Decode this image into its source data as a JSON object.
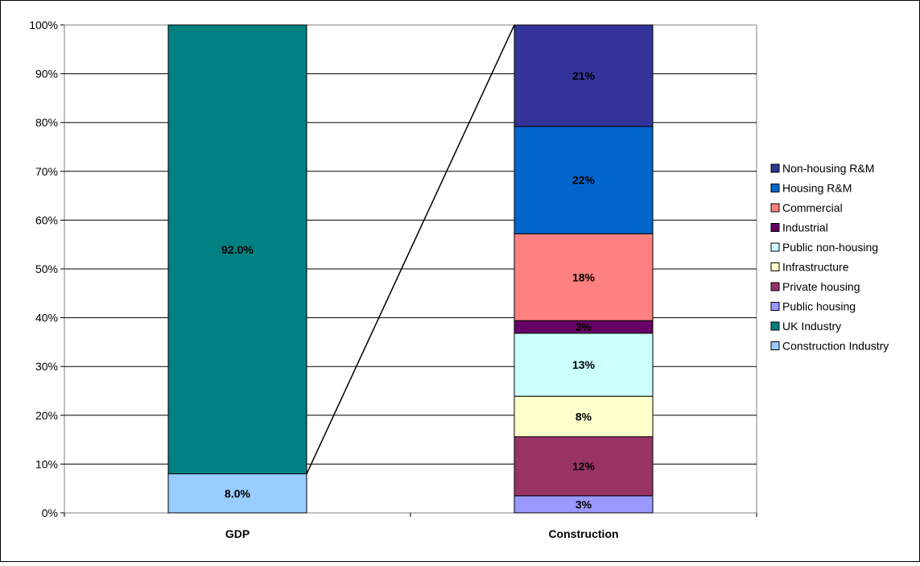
{
  "chart_data": {
    "type": "bar",
    "stacked": true,
    "percent_stacked": true,
    "categories": [
      "GDP",
      "Construction"
    ],
    "ylim": [
      0,
      100
    ],
    "yticks": [
      "0%",
      "10%",
      "20%",
      "30%",
      "40%",
      "50%",
      "60%",
      "70%",
      "80%",
      "90%",
      "100%"
    ],
    "grid": true,
    "legend_position": "right",
    "stacks": [
      {
        "category": "GDP",
        "segments": [
          {
            "name": "Construction Industry",
            "value": 8.0,
            "label": "8.0%",
            "color": "#99ccff"
          },
          {
            "name": "UK Industry",
            "value": 92.0,
            "label": "92.0%",
            "color": "#008080"
          }
        ]
      },
      {
        "category": "Construction",
        "segments": [
          {
            "name": "Public housing",
            "value": 3.5,
            "label": "3%",
            "color": "#9999ff"
          },
          {
            "name": "Private housing",
            "value": 12.1,
            "label": "12%",
            "color": "#993366"
          },
          {
            "name": "Infrastructure",
            "value": 8.3,
            "label": "8%",
            "color": "#ffffcc"
          },
          {
            "name": "Public non-housing",
            "value": 12.9,
            "label": "13%",
            "color": "#ccffff"
          },
          {
            "name": "Industrial",
            "value": 2.6,
            "label": "3%",
            "color": "#660066"
          },
          {
            "name": "Commercial",
            "value": 17.8,
            "label": "18%",
            "color": "#ff8080"
          },
          {
            "name": "Housing R&M",
            "value": 22.0,
            "label": "22%",
            "color": "#0066cc"
          },
          {
            "name": "Non-housing R&M",
            "value": 20.8,
            "label": "21%",
            "color": "#333399"
          }
        ]
      }
    ],
    "legend": [
      {
        "name": "Non-housing R&M",
        "color": "#333399"
      },
      {
        "name": "Housing R&M",
        "color": "#0066cc"
      },
      {
        "name": "Commercial",
        "color": "#ff8080"
      },
      {
        "name": "Industrial",
        "color": "#660066"
      },
      {
        "name": "Public non-housing",
        "color": "#ccffff"
      },
      {
        "name": "Infrastructure",
        "color": "#ffffcc"
      },
      {
        "name": "Private housing",
        "color": "#993366"
      },
      {
        "name": "Public housing",
        "color": "#9999ff"
      },
      {
        "name": "UK Industry",
        "color": "#008080"
      },
      {
        "name": "Construction Industry",
        "color": "#99ccff"
      }
    ],
    "connector_from_category": "GDP",
    "connector_from_segment": "Construction Industry"
  }
}
